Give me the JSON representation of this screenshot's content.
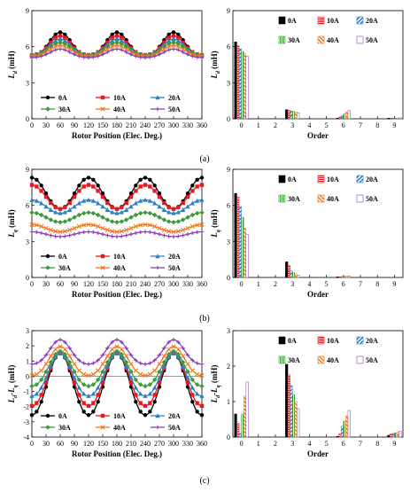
{
  "colors": {
    "0A": "#000000",
    "10A": "#e8191e",
    "20A": "#2f7fc1",
    "30A": "#3f9a3a",
    "40A": "#f47a1f",
    "50A": "#8a3fb8"
  },
  "chart_data": [
    {
      "id": "a-left",
      "type": "line",
      "panel_label": "(a)",
      "xlabel": "Rotor Position (Elec. Deg.)",
      "ylabel_main": "L",
      "ylabel_sub": "d",
      "ylabel_unit": " (mH)",
      "xlim": [
        0,
        360
      ],
      "ylim": [
        0,
        9
      ],
      "xticks": [
        "0",
        "30",
        "60",
        "90",
        "120",
        "150",
        "180",
        "210",
        "240",
        "270",
        "300",
        "330",
        "360"
      ],
      "yticks": [
        "0",
        "3",
        "6",
        "9"
      ],
      "legend": "bottom-inside, 3 columns",
      "series": [
        {
          "name": "0A",
          "marker": "circle",
          "mean": 6.1,
          "amp": 1.0,
          "phase": 60,
          "h2": 0.1
        },
        {
          "name": "10A",
          "marker": "square",
          "mean": 6.0,
          "amp": 0.8,
          "phase": 60,
          "h2": 0.1
        },
        {
          "name": "20A",
          "marker": "triangle",
          "mean": 5.9,
          "amp": 0.65,
          "phase": 60,
          "h2": 0.08
        },
        {
          "name": "30A",
          "marker": "diamond",
          "mean": 5.75,
          "amp": 0.55,
          "phase": 60,
          "h2": 0.06
        },
        {
          "name": "40A",
          "marker": "cross",
          "mean": 5.6,
          "amp": 0.45,
          "phase": 60,
          "h2": 0.05
        },
        {
          "name": "50A",
          "marker": "plus",
          "mean": 5.4,
          "amp": 0.35,
          "phase": 60,
          "h2": 0.05
        }
      ]
    },
    {
      "id": "a-right",
      "type": "bar",
      "xlabel": "Order",
      "ylabel_main": "L",
      "ylabel_sub": "d",
      "ylabel_unit": " (mH)",
      "xlim": [
        -0.5,
        9.5
      ],
      "ylim": [
        0,
        9
      ],
      "xticks": [
        "0",
        "1",
        "2",
        "3",
        "4",
        "5",
        "6",
        "7",
        "8",
        "9"
      ],
      "yticks": [
        "0",
        "3",
        "6",
        "9"
      ],
      "legend": "top-right, 3 columns",
      "orders": [
        0,
        3,
        6,
        9
      ],
      "series": [
        {
          "name": "0A",
          "values": [
            6.4,
            0.75,
            0.05,
            0.05
          ]
        },
        {
          "name": "10A",
          "values": [
            6.1,
            0.7,
            0.15,
            0.05
          ]
        },
        {
          "name": "20A",
          "values": [
            5.8,
            0.65,
            0.25,
            0.05
          ]
        },
        {
          "name": "30A",
          "values": [
            5.6,
            0.6,
            0.4,
            0.05
          ]
        },
        {
          "name": "40A",
          "values": [
            5.4,
            0.55,
            0.55,
            0.05
          ]
        },
        {
          "name": "50A",
          "values": [
            5.2,
            0.5,
            0.7,
            0.08
          ]
        }
      ]
    },
    {
      "id": "b-left",
      "type": "line",
      "panel_label": "(b)",
      "xlabel": "Rotor Position (Elec. Deg.)",
      "ylabel_main": "L",
      "ylabel_sub": "q",
      "ylabel_unit": " (mH)",
      "xlim": [
        0,
        360
      ],
      "ylim": [
        0,
        9
      ],
      "xticks": [
        "0",
        "30",
        "60",
        "90",
        "120",
        "150",
        "180",
        "210",
        "240",
        "270",
        "300",
        "330",
        "360"
      ],
      "yticks": [
        "0",
        "3",
        "6",
        "9"
      ],
      "legend": "bottom-inside, 3 columns",
      "series": [
        {
          "name": "0A",
          "marker": "circle",
          "mean": 7.0,
          "amp": 1.3,
          "phase": 0,
          "h2": 0
        },
        {
          "name": "10A",
          "marker": "square",
          "mean": 6.7,
          "amp": 1.0,
          "phase": 0,
          "h2": 0
        },
        {
          "name": "20A",
          "marker": "triangle",
          "mean": 5.9,
          "amp": 0.55,
          "phase": 0,
          "h2": 0
        },
        {
          "name": "30A",
          "marker": "diamond",
          "mean": 5.0,
          "amp": 0.4,
          "phase": 0,
          "h2": 0
        },
        {
          "name": "40A",
          "marker": "cross",
          "mean": 4.1,
          "amp": 0.3,
          "phase": 0,
          "h2": 0
        },
        {
          "name": "50A",
          "marker": "plus",
          "mean": 3.6,
          "amp": 0.2,
          "phase": 0,
          "h2": 0
        }
      ]
    },
    {
      "id": "b-right",
      "type": "bar",
      "xlabel": "Order",
      "ylabel_main": "L",
      "ylabel_sub": "q",
      "ylabel_unit": " (mH)",
      "xlim": [
        -0.5,
        9.5
      ],
      "ylim": [
        0,
        9
      ],
      "xticks": [
        "0",
        "1",
        "2",
        "3",
        "4",
        "5",
        "6",
        "7",
        "8",
        "9"
      ],
      "yticks": [
        "0",
        "3",
        "6",
        "9"
      ],
      "legend": "top-right, 3 columns",
      "orders": [
        0,
        3,
        6,
        9
      ],
      "series": [
        {
          "name": "0A",
          "values": [
            7.0,
            1.3,
            0.05,
            0
          ]
        },
        {
          "name": "10A",
          "values": [
            6.7,
            1.0,
            0.05,
            0
          ]
        },
        {
          "name": "20A",
          "values": [
            5.9,
            0.55,
            0.08,
            0
          ]
        },
        {
          "name": "30A",
          "values": [
            5.0,
            0.4,
            0.1,
            0
          ]
        },
        {
          "name": "40A",
          "values": [
            4.1,
            0.3,
            0.12,
            0
          ]
        },
        {
          "name": "50A",
          "values": [
            3.6,
            0.2,
            0.12,
            0
          ]
        }
      ]
    },
    {
      "id": "c-left",
      "type": "line",
      "panel_label": "(c)",
      "xlabel": "Rotor Position (Elec. Deg.)",
      "ylabel_main": "L",
      "ylabel_sub": "d",
      "ylabel_mid": "-L",
      "ylabel_sub2": "q",
      "ylabel_unit": " (mH)",
      "xlim": [
        0,
        360
      ],
      "ylim": [
        -4,
        3
      ],
      "xticks": [
        "0",
        "30",
        "60",
        "90",
        "120",
        "150",
        "180",
        "210",
        "240",
        "270",
        "300",
        "330",
        "360"
      ],
      "yticks": [
        "-4",
        "-3",
        "-2",
        "-1",
        "0",
        "1",
        "2",
        "3"
      ],
      "legend": "bottom-inside, 3 columns",
      "series": [
        {
          "name": "0A",
          "marker": "circle",
          "mean": -0.6,
          "amp": 2.05,
          "phase": 60,
          "h2": 0.1
        },
        {
          "name": "10A",
          "marker": "square",
          "mean": -0.3,
          "amp": 1.75,
          "phase": 60,
          "h2": 0.1
        },
        {
          "name": "20A",
          "marker": "triangle",
          "mean": 0.0,
          "amp": 1.4,
          "phase": 60,
          "h2": 0.1
        },
        {
          "name": "30A",
          "marker": "diamond",
          "mean": 0.4,
          "amp": 1.15,
          "phase": 60,
          "h2": 0.1
        },
        {
          "name": "40A",
          "marker": "cross",
          "mean": 0.9,
          "amp": 0.95,
          "phase": 60,
          "h2": 0.1
        },
        {
          "name": "50A",
          "marker": "plus",
          "mean": 1.5,
          "amp": 0.8,
          "phase": 60,
          "h2": 0.1
        }
      ]
    },
    {
      "id": "c-right",
      "type": "bar",
      "xlabel": "Order",
      "ylabel_main": "L",
      "ylabel_sub": "d",
      "ylabel_mid": "-L",
      "ylabel_sub2": "q",
      "ylabel_unit": " (mH)",
      "xlim": [
        -0.5,
        9.5
      ],
      "ylim": [
        0,
        3
      ],
      "xticks": [
        "0",
        "1",
        "2",
        "3",
        "4",
        "5",
        "6",
        "7",
        "8",
        "9"
      ],
      "yticks": [
        "0",
        "1",
        "2",
        "3"
      ],
      "legend": "top-right, 3 columns",
      "orders": [
        0,
        3,
        6,
        9
      ],
      "series": [
        {
          "name": "0A",
          "values": [
            0.65,
            2.05,
            0.02,
            0.05
          ]
        },
        {
          "name": "10A",
          "values": [
            0.4,
            1.75,
            0.1,
            0.08
          ]
        },
        {
          "name": "20A",
          "values": [
            0.1,
            1.45,
            0.3,
            0.1
          ]
        },
        {
          "name": "30A",
          "values": [
            0.65,
            1.2,
            0.45,
            0.12
          ]
        },
        {
          "name": "40A",
          "values": [
            1.15,
            1.0,
            0.6,
            0.14
          ]
        },
        {
          "name": "50A",
          "values": [
            1.55,
            0.8,
            0.75,
            0.16
          ]
        }
      ]
    }
  ]
}
